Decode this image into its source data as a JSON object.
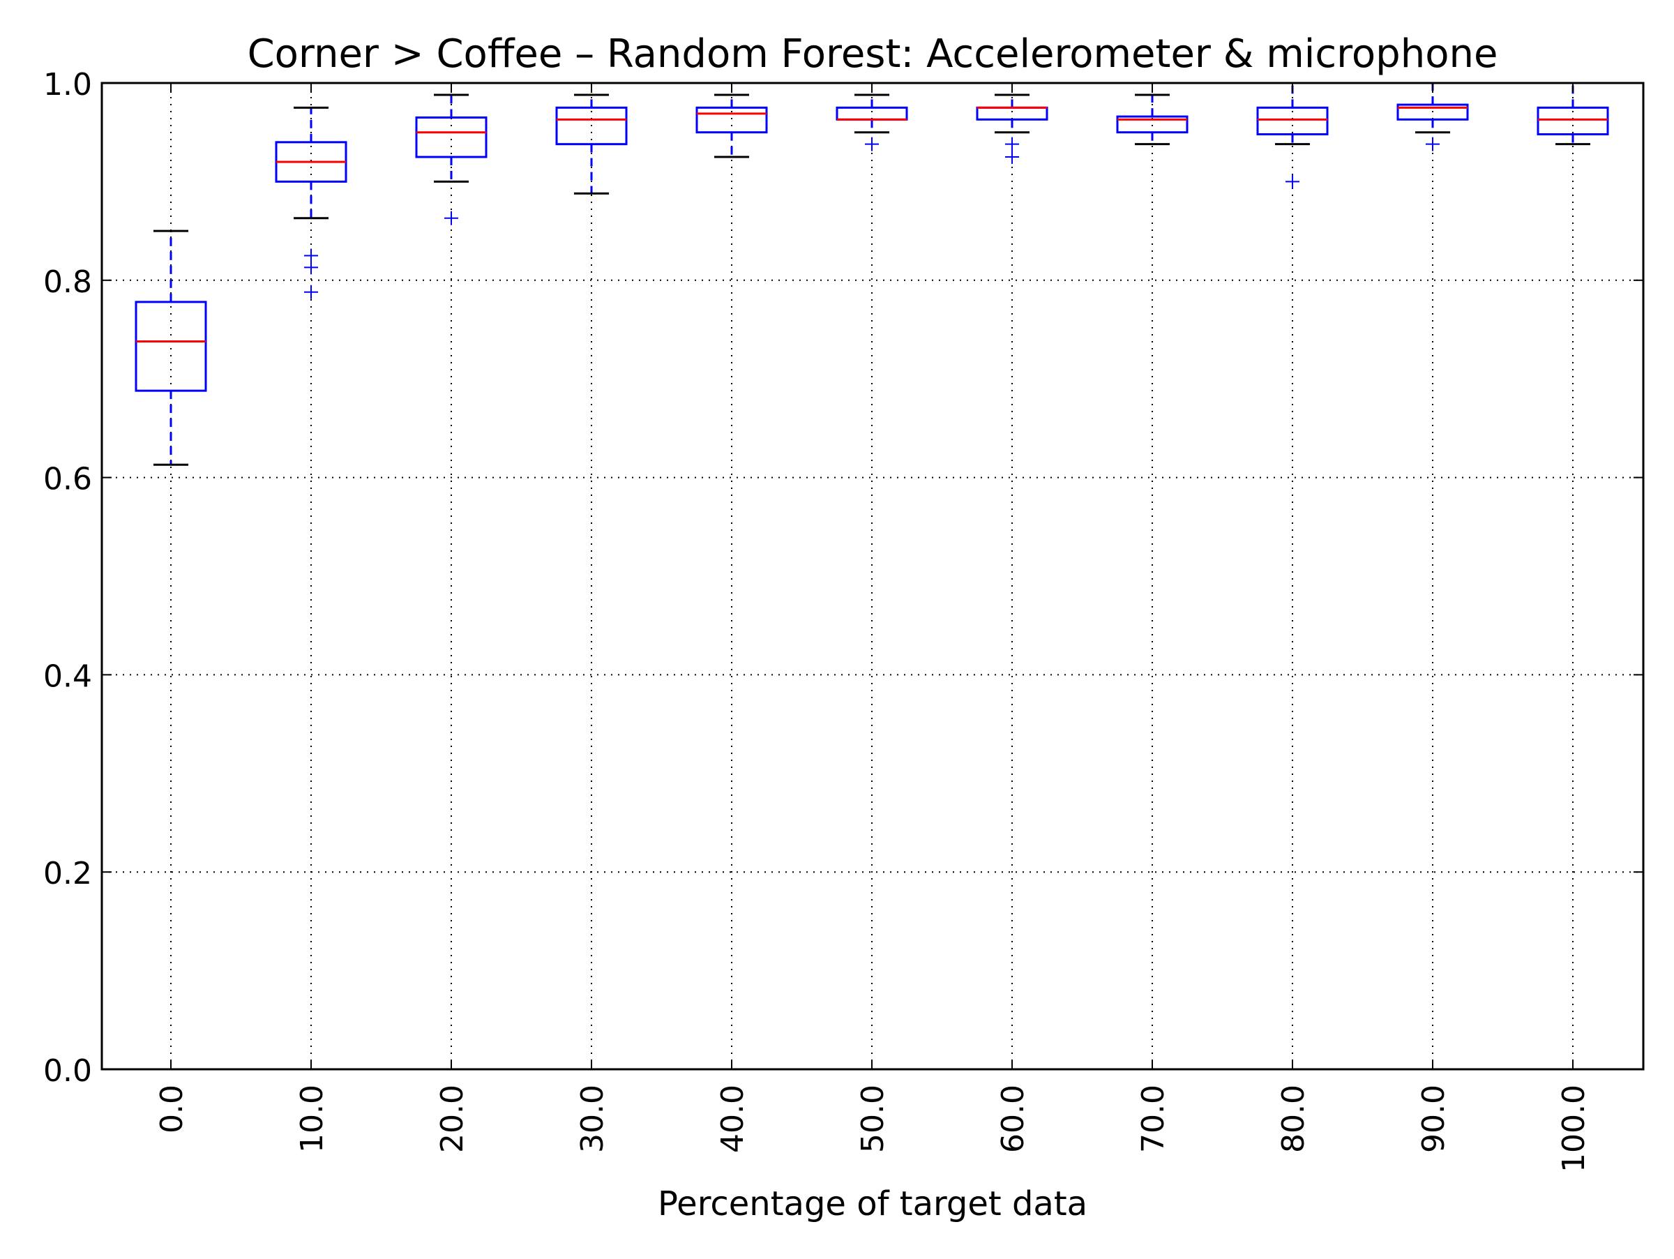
{
  "chart_data": {
    "type": "boxplot",
    "title": "Corner > Coffee – Random Forest: Accelerometer & microphone",
    "xlabel": "Percentage of target data",
    "ylabel": "",
    "ylim": [
      0.0,
      1.0
    ],
    "yticks": [
      "0.0",
      "0.2",
      "0.4",
      "0.6",
      "0.8",
      "1.0"
    ],
    "grid": true,
    "categories": [
      "0.0",
      "10.0",
      "20.0",
      "30.0",
      "40.0",
      "50.0",
      "60.0",
      "70.0",
      "80.0",
      "90.0",
      "100.0"
    ],
    "boxes": [
      {
        "whisker_low": 0.613,
        "q1": 0.688,
        "median": 0.738,
        "q3": 0.778,
        "whisker_high": 0.85,
        "outliers": []
      },
      {
        "whisker_low": 0.863,
        "q1": 0.9,
        "median": 0.92,
        "q3": 0.94,
        "whisker_high": 0.975,
        "outliers": [
          0.788,
          0.813,
          0.825
        ]
      },
      {
        "whisker_low": 0.9,
        "q1": 0.925,
        "median": 0.95,
        "q3": 0.965,
        "whisker_high": 0.988,
        "outliers": [
          0.863
        ]
      },
      {
        "whisker_low": 0.888,
        "q1": 0.938,
        "median": 0.963,
        "q3": 0.975,
        "whisker_high": 0.988,
        "outliers": []
      },
      {
        "whisker_low": 0.925,
        "q1": 0.95,
        "median": 0.969,
        "q3": 0.975,
        "whisker_high": 0.988,
        "outliers": []
      },
      {
        "whisker_low": 0.95,
        "q1": 0.963,
        "median": 0.963,
        "q3": 0.975,
        "whisker_high": 0.988,
        "outliers": [
          0.938
        ]
      },
      {
        "whisker_low": 0.95,
        "q1": 0.963,
        "median": 0.975,
        "q3": 0.975,
        "whisker_high": 0.988,
        "outliers": [
          0.925,
          0.938
        ]
      },
      {
        "whisker_low": 0.938,
        "q1": 0.95,
        "median": 0.963,
        "q3": 0.966,
        "whisker_high": 0.988,
        "outliers": []
      },
      {
        "whisker_low": 0.938,
        "q1": 0.948,
        "median": 0.963,
        "q3": 0.975,
        "whisker_high": 1.0,
        "outliers": [
          0.9
        ]
      },
      {
        "whisker_low": 0.95,
        "q1": 0.963,
        "median": 0.975,
        "q3": 0.978,
        "whisker_high": 1.0,
        "outliers": [
          0.938
        ]
      },
      {
        "whisker_low": 0.938,
        "q1": 0.948,
        "median": 0.963,
        "q3": 0.975,
        "whisker_high": 1.0,
        "outliers": []
      }
    ],
    "colors": {
      "box": "#0000ff",
      "median": "#ff0000",
      "cap": "#000000",
      "whisker": "#0000ff",
      "outlier": "#0000ff",
      "grid": "#000000",
      "axes": "#000000"
    }
  }
}
